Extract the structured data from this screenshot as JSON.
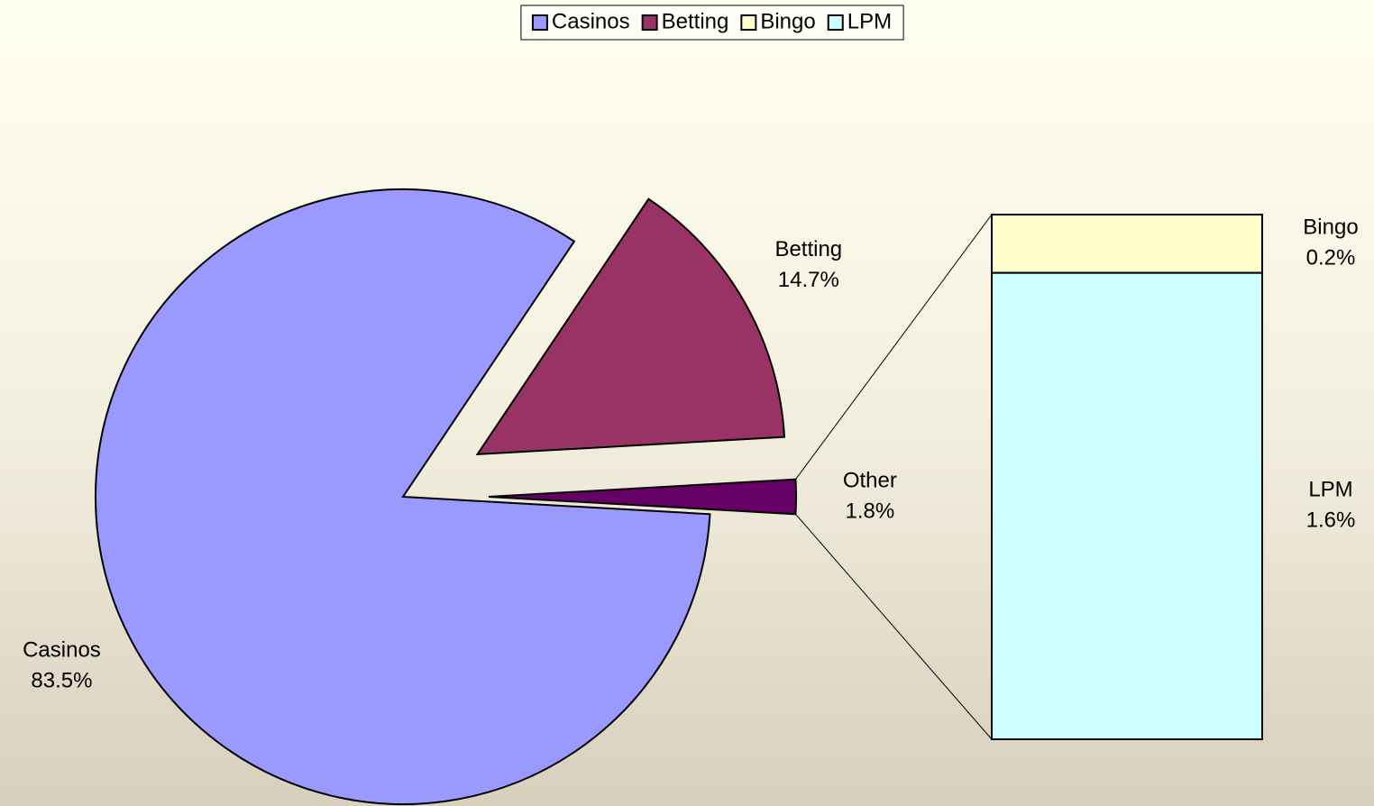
{
  "chart_data": {
    "type": "bar-of-pie",
    "categories": [
      "Casinos",
      "Betting",
      "Other"
    ],
    "values": [
      83.5,
      14.7,
      1.8
    ],
    "value_labels": [
      "83.5%",
      "14.7%",
      "1.8%"
    ],
    "colors": [
      "#9999ff",
      "#993366",
      "#660066"
    ],
    "breakdown": {
      "categories": [
        "Bingo",
        "LPM"
      ],
      "values": [
        0.2,
        1.6
      ],
      "value_labels": [
        "0.2%",
        "1.6%"
      ],
      "colors": [
        "#ffffcc",
        "#ccffff"
      ]
    },
    "legend_position": "top"
  }
}
